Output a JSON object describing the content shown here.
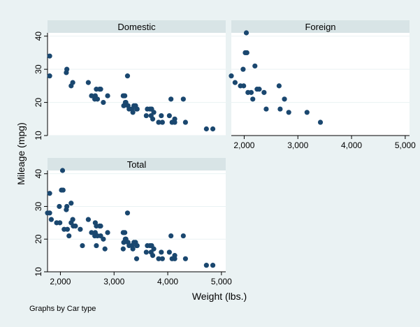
{
  "chart_data": {
    "type": "scatter",
    "ylabel": "Mileage (mpg)",
    "xlabel": "Weight (lbs.)",
    "note": "Graphs by Car type",
    "colors": {
      "background": "#eaf2f3",
      "plot_area": "#ffffff",
      "panel_header": "#d8e4e6",
      "marker": "#1a476f",
      "grid": "#eaf2f3"
    },
    "x_ticks": [
      {
        "value": 2000,
        "label": "2,000"
      },
      {
        "value": 3000,
        "label": "3,000"
      },
      {
        "value": 4000,
        "label": "4,000"
      },
      {
        "value": 5000,
        "label": "5,000"
      }
    ],
    "y_ticks": [
      {
        "value": 10,
        "label": "10"
      },
      {
        "value": 20,
        "label": "20"
      },
      {
        "value": 30,
        "label": "30"
      },
      {
        "value": 40,
        "label": "40"
      }
    ],
    "xlim": [
      1760,
      5080
    ],
    "ylim": [
      10,
      41
    ],
    "panels": [
      {
        "name": "Domestic",
        "points": [
          [
            1800,
            34
          ],
          [
            1800,
            28
          ],
          [
            2110,
            29
          ],
          [
            2120,
            30
          ],
          [
            2200,
            25
          ],
          [
            2230,
            26
          ],
          [
            2520,
            26
          ],
          [
            2580,
            22
          ],
          [
            2640,
            21
          ],
          [
            2650,
            22
          ],
          [
            2670,
            24
          ],
          [
            2690,
            21
          ],
          [
            2730,
            24
          ],
          [
            2750,
            24
          ],
          [
            2800,
            20
          ],
          [
            2880,
            22
          ],
          [
            3170,
            22
          ],
          [
            3180,
            19
          ],
          [
            3200,
            22
          ],
          [
            3210,
            20
          ],
          [
            3220,
            20
          ],
          [
            3250,
            28
          ],
          [
            3260,
            19
          ],
          [
            3280,
            18
          ],
          [
            3330,
            18
          ],
          [
            3350,
            17
          ],
          [
            3370,
            19
          ],
          [
            3400,
            19
          ],
          [
            3420,
            18
          ],
          [
            3430,
            18
          ],
          [
            3600,
            16
          ],
          [
            3620,
            18
          ],
          [
            3670,
            18
          ],
          [
            3690,
            16
          ],
          [
            3700,
            18
          ],
          [
            3720,
            15
          ],
          [
            3740,
            17
          ],
          [
            3830,
            14
          ],
          [
            3880,
            16
          ],
          [
            3900,
            14
          ],
          [
            4030,
            16
          ],
          [
            4060,
            21
          ],
          [
            4080,
            14
          ],
          [
            4130,
            15
          ],
          [
            4130,
            14
          ],
          [
            4290,
            21
          ],
          [
            4330,
            14
          ],
          [
            4720,
            12
          ],
          [
            4840,
            12
          ]
        ]
      },
      {
        "name": "Foreign",
        "points": [
          [
            1760,
            28
          ],
          [
            1830,
            26
          ],
          [
            1930,
            25
          ],
          [
            1980,
            30
          ],
          [
            1990,
            25
          ],
          [
            2020,
            35
          ],
          [
            2040,
            41
          ],
          [
            2050,
            35
          ],
          [
            2070,
            23
          ],
          [
            2130,
            23
          ],
          [
            2160,
            21
          ],
          [
            2200,
            31
          ],
          [
            2240,
            24
          ],
          [
            2280,
            24
          ],
          [
            2370,
            23
          ],
          [
            2410,
            18
          ],
          [
            2650,
            25
          ],
          [
            2670,
            18
          ],
          [
            2750,
            21
          ],
          [
            2830,
            17
          ],
          [
            3170,
            17
          ],
          [
            3420,
            14
          ]
        ]
      },
      {
        "name": "Total",
        "points": [
          [
            1800,
            34
          ],
          [
            1800,
            28
          ],
          [
            2110,
            29
          ],
          [
            2120,
            30
          ],
          [
            2200,
            25
          ],
          [
            2230,
            26
          ],
          [
            2520,
            26
          ],
          [
            2580,
            22
          ],
          [
            2640,
            21
          ],
          [
            2650,
            22
          ],
          [
            2670,
            24
          ],
          [
            2690,
            21
          ],
          [
            2730,
            24
          ],
          [
            2750,
            24
          ],
          [
            2800,
            20
          ],
          [
            2880,
            22
          ],
          [
            3170,
            22
          ],
          [
            3180,
            19
          ],
          [
            3200,
            22
          ],
          [
            3210,
            20
          ],
          [
            3220,
            20
          ],
          [
            3250,
            28
          ],
          [
            3260,
            19
          ],
          [
            3280,
            18
          ],
          [
            3330,
            18
          ],
          [
            3350,
            17
          ],
          [
            3370,
            19
          ],
          [
            3400,
            19
          ],
          [
            3420,
            18
          ],
          [
            3430,
            18
          ],
          [
            3600,
            16
          ],
          [
            3620,
            18
          ],
          [
            3670,
            18
          ],
          [
            3690,
            16
          ],
          [
            3700,
            18
          ],
          [
            3720,
            15
          ],
          [
            3740,
            17
          ],
          [
            3830,
            14
          ],
          [
            3880,
            16
          ],
          [
            3900,
            14
          ],
          [
            4030,
            16
          ],
          [
            4060,
            21
          ],
          [
            4080,
            14
          ],
          [
            4130,
            15
          ],
          [
            4130,
            14
          ],
          [
            4290,
            21
          ],
          [
            4330,
            14
          ],
          [
            4720,
            12
          ],
          [
            4840,
            12
          ],
          [
            1760,
            28
          ],
          [
            1830,
            26
          ],
          [
            1930,
            25
          ],
          [
            1980,
            30
          ],
          [
            1990,
            25
          ],
          [
            2020,
            35
          ],
          [
            2040,
            41
          ],
          [
            2050,
            35
          ],
          [
            2070,
            23
          ],
          [
            2130,
            23
          ],
          [
            2160,
            21
          ],
          [
            2200,
            31
          ],
          [
            2240,
            24
          ],
          [
            2280,
            24
          ],
          [
            2370,
            23
          ],
          [
            2410,
            18
          ],
          [
            2650,
            25
          ],
          [
            2670,
            18
          ],
          [
            2750,
            21
          ],
          [
            2830,
            17
          ],
          [
            3170,
            17
          ],
          [
            3420,
            14
          ]
        ]
      }
    ]
  }
}
